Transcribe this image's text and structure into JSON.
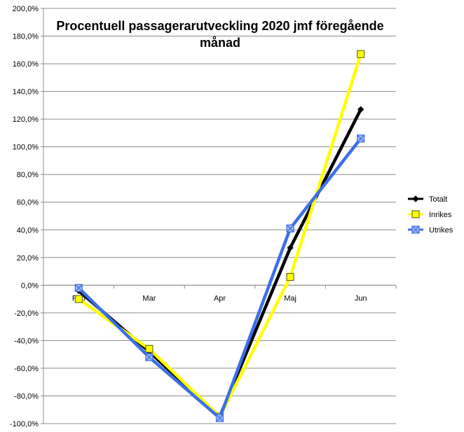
{
  "chart_data": {
    "type": "line",
    "title_lines": [
      "Procentuell  passagerarutveckling  2020 jmf föregående",
      "månad"
    ],
    "categories": [
      "Feb",
      "Mar",
      "Apr",
      "Maj",
      "Jun"
    ],
    "yticks": [
      "200,0%",
      "180,0%",
      "160,0%",
      "140,0%",
      "120,0%",
      "100,0%",
      "80,0%",
      "60,0%",
      "40,0%",
      "20,0%",
      "0,0%",
      "-20,0%",
      "-40,0%",
      "-60,0%",
      "-80,0%",
      "-100,0%"
    ],
    "ylim": [
      -100,
      200
    ],
    "grid": "horizontal",
    "legend_position": "right",
    "series": [
      {
        "name": "Totalt",
        "values": [
          -4,
          -48,
          -95,
          27,
          127
        ],
        "color": "#000000",
        "marker": "diamond"
      },
      {
        "name": "Inrikes",
        "values": [
          -10,
          -46,
          -95,
          6,
          167
        ],
        "color": "#ffff00",
        "marker": "square"
      },
      {
        "name": "Utrikes",
        "values": [
          -2,
          -52,
          -96,
          41,
          106
        ],
        "color": "#3b6fe6",
        "marker": "x-square"
      }
    ]
  }
}
